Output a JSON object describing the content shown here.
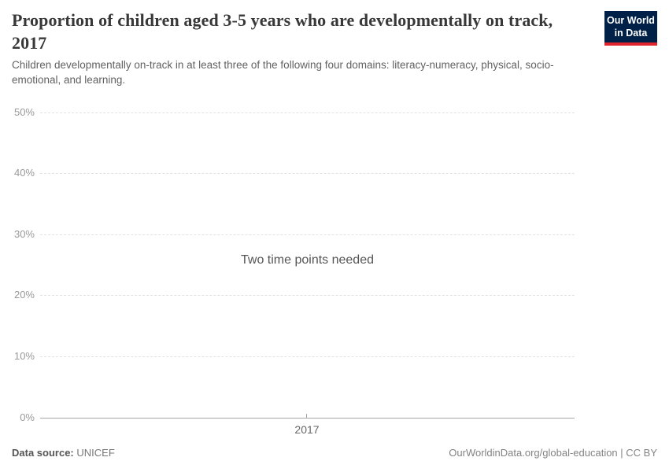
{
  "header": {
    "title": "Proportion of children aged 3-5 years who are developmentally on track, 2017",
    "subtitle": "Children developmentally on-track in at least three of the following four domains: literacy-numeracy, physical, socio-emotional, and learning."
  },
  "logo": {
    "line1": "Our World",
    "line2": "in Data",
    "bg_color": "#002147",
    "accent_color": "#e0232c"
  },
  "chart_data": {
    "type": "line",
    "title": "Proportion of children aged 3-5 years who are developmentally on track, 2017",
    "empty_message": "Two time points needed",
    "x_tick_labels": [
      "2017"
    ],
    "y_tick_labels": [
      "0%",
      "10%",
      "20%",
      "30%",
      "40%",
      "50%"
    ],
    "ylim": [
      0,
      50
    ],
    "xlabel": "",
    "ylabel": "",
    "grid": true,
    "series": []
  },
  "footer": {
    "source_label": "Data source:",
    "source_value": "UNICEF",
    "link": "OurWorldinData.org/global-education | CC BY"
  }
}
